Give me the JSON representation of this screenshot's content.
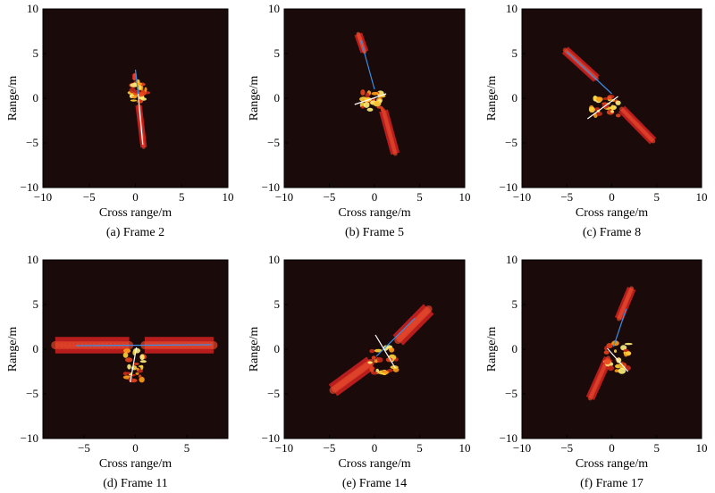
{
  "figure": {
    "panels": [
      {
        "caption": "(a) Frame 2"
      },
      {
        "caption": "(b) Frame 5"
      },
      {
        "caption": "(c) Frame 8"
      },
      {
        "caption": "(d) Frame 11"
      },
      {
        "caption": "(e) Frame 14"
      },
      {
        "caption": "(f) Frame 17"
      }
    ]
  },
  "chart_data": [
    {
      "type": "heatmap",
      "caption": "(a) Frame 2",
      "xlabel": "Cross range/m",
      "ylabel": "Range/m",
      "xlim": [
        -10,
        10
      ],
      "ylim": [
        -10,
        10
      ],
      "xticks": [
        "−10",
        "−5",
        "0",
        "5",
        "10"
      ],
      "yticks": [
        "10",
        "5",
        "0",
        "−5",
        "−10"
      ],
      "background": "#1a0a0a",
      "grid": false,
      "axis_lines": [
        {
          "color": "#3a8ee6",
          "from": [
            0.0,
            3.2
          ],
          "to": [
            0.3,
            0.5
          ]
        },
        {
          "color": "#ffffff",
          "from": [
            0.3,
            0.5
          ],
          "to": [
            0.8,
            -5.2
          ]
        }
      ],
      "panels_solar": [
        {
          "from": [
            -0.1,
            2.7
          ],
          "to": [
            -0.1,
            2.1
          ],
          "width": 0.25
        },
        {
          "from": [
            0.35,
            -0.8
          ],
          "to": [
            0.9,
            -5.5
          ],
          "width": 0.35
        }
      ],
      "body_scatter": {
        "center": [
          0.3,
          0.7
        ],
        "spread": [
          1.0,
          1.3
        ]
      }
    },
    {
      "type": "heatmap",
      "caption": "(b) Frame 5",
      "xlabel": "Cross range/m",
      "ylabel": "Range/m",
      "xlim": [
        -10,
        10
      ],
      "ylim": [
        -10,
        10
      ],
      "xticks": [
        "−10",
        "−5",
        "0",
        "5",
        "10"
      ],
      "yticks": [
        "10",
        "5",
        "0",
        "−5",
        "−10"
      ],
      "background": "#1a0a0a",
      "grid": false,
      "axis_lines": [
        {
          "color": "#3a8ee6",
          "from": [
            -1.5,
            6.5
          ],
          "to": [
            0.0,
            1.0
          ]
        },
        {
          "color": "#ffffff",
          "from": [
            -2.2,
            -0.7
          ],
          "to": [
            1.3,
            0.5
          ]
        }
      ],
      "panels_solar": [
        {
          "from": [
            -1.8,
            7.2
          ],
          "to": [
            -1.1,
            5.2
          ],
          "width": 0.45
        },
        {
          "from": [
            1.0,
            -1.4
          ],
          "to": [
            2.3,
            -6.2
          ],
          "width": 0.5
        }
      ],
      "body_scatter": {
        "center": [
          0.0,
          -0.2
        ],
        "spread": [
          1.6,
          1.1
        ]
      }
    },
    {
      "type": "heatmap",
      "caption": "(c) Frame 8",
      "xlabel": "Cross range/m",
      "ylabel": "Range/m",
      "xlim": [
        -10,
        10
      ],
      "ylim": [
        -10,
        10
      ],
      "xticks": [
        "−10",
        "−5",
        "0",
        "5",
        "10"
      ],
      "yticks": [
        "10",
        "5",
        "0",
        "−5",
        "−10"
      ],
      "background": "#1a0a0a",
      "grid": false,
      "axis_lines": [
        {
          "color": "#3a8ee6",
          "from": [
            -5.0,
            5.2
          ],
          "to": [
            0.0,
            0.5
          ]
        },
        {
          "color": "#ffffff",
          "from": [
            -2.7,
            -2.3
          ],
          "to": [
            0.7,
            0.2
          ]
        }
      ],
      "panels_solar": [
        {
          "from": [
            -5.2,
            5.4
          ],
          "to": [
            -1.7,
            2.2
          ],
          "width": 0.5
        },
        {
          "from": [
            1.1,
            -1.2
          ],
          "to": [
            4.6,
            -4.8
          ],
          "width": 0.5
        }
      ],
      "body_scatter": {
        "center": [
          -0.8,
          -0.9
        ],
        "spread": [
          1.6,
          1.1
        ]
      }
    },
    {
      "type": "heatmap",
      "caption": "(d) Frame 11",
      "xlabel": "Cross range/m",
      "ylabel": "Range/m",
      "xlim": [
        -9,
        9
      ],
      "ylim": [
        -10,
        10
      ],
      "xticks": [
        "−5",
        "0",
        "5"
      ],
      "yticks": [
        "10",
        "5",
        "0",
        "−5",
        "−10"
      ],
      "background": "#1a0a0a",
      "grid": false,
      "axis_lines": [
        {
          "color": "#3a8ee6",
          "from": [
            -5.8,
            0.4
          ],
          "to": [
            7.4,
            0.5
          ]
        },
        {
          "color": "#ffffff",
          "from": [
            0.1,
            0.2
          ],
          "to": [
            -0.5,
            -3.7
          ]
        }
      ],
      "panels_solar": [
        {
          "from": [
            -7.8,
            0.45
          ],
          "to": [
            -0.6,
            0.45
          ],
          "width": 0.8
        },
        {
          "from": [
            0.9,
            0.45
          ],
          "to": [
            7.6,
            0.45
          ],
          "width": 0.8
        }
      ],
      "body_scatter": {
        "center": [
          -0.1,
          -1.9
        ],
        "spread": [
          0.9,
          1.8
        ]
      }
    },
    {
      "type": "heatmap",
      "caption": "(e) Frame 14",
      "xlabel": "Cross range/m",
      "ylabel": "Range/m",
      "xlim": [
        -10,
        10
      ],
      "ylim": [
        -10,
        10
      ],
      "xticks": [
        "−10",
        "−5",
        "0",
        "5",
        "10"
      ],
      "yticks": [
        "10",
        "5",
        "0",
        "−5",
        "−10"
      ],
      "background": "#1a0a0a",
      "grid": false,
      "axis_lines": [
        {
          "color": "#3a8ee6",
          "from": [
            0.2,
            -0.8
          ],
          "to": [
            4.5,
            3.5
          ]
        },
        {
          "color": "#ffffff",
          "from": [
            0.1,
            1.6
          ],
          "to": [
            2.3,
            -2.1
          ]
        }
      ],
      "panels_solar": [
        {
          "from": [
            -4.6,
            -4.6
          ],
          "to": [
            -0.4,
            -1.5
          ],
          "width": 0.8
        },
        {
          "from": [
            2.6,
            1.0
          ],
          "to": [
            6.0,
            4.5
          ],
          "width": 0.8
        }
      ],
      "body_scatter": {
        "center": [
          1.0,
          -1.1
        ],
        "spread": [
          1.5,
          1.6
        ]
      }
    },
    {
      "type": "heatmap",
      "caption": "(f) Frame 17",
      "xlabel": "Cross range/m",
      "ylabel": "Range/m",
      "xlim": [
        -10,
        10
      ],
      "ylim": [
        -10,
        10
      ],
      "xticks": [
        "−10",
        "−5",
        "0",
        "5",
        "10"
      ],
      "yticks": [
        "10",
        "5",
        "0",
        "−5",
        "−10"
      ],
      "background": "#1a0a0a",
      "grid": false,
      "axis_lines": [
        {
          "color": "#3a8ee6",
          "from": [
            0.2,
            0.3
          ],
          "to": [
            1.6,
            4.5
          ]
        },
        {
          "color": "#ffffff",
          "from": [
            -0.5,
            0.1
          ],
          "to": [
            1.8,
            -2.5
          ]
        }
      ],
      "panels_solar": [
        {
          "from": [
            0.8,
            3.4
          ],
          "to": [
            2.2,
            6.8
          ],
          "width": 0.5
        },
        {
          "from": [
            -0.4,
            -1.0
          ],
          "to": [
            -2.4,
            -5.5
          ],
          "width": 0.5
        }
      ],
      "body_scatter": {
        "center": [
          0.4,
          -0.9
        ],
        "spread": [
          1.5,
          1.6
        ]
      }
    }
  ]
}
